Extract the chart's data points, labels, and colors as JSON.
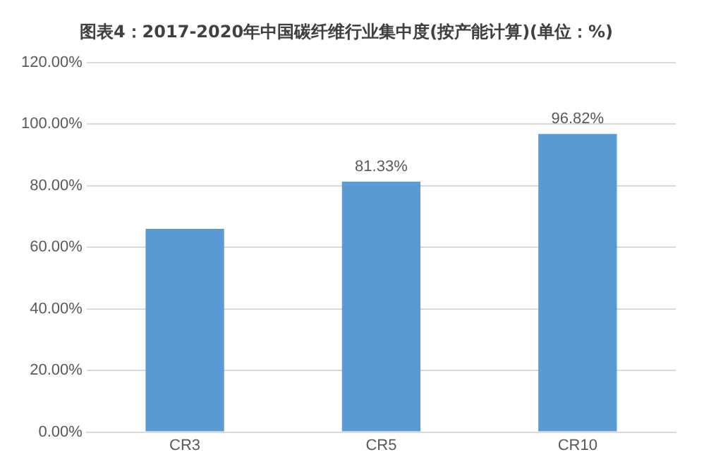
{
  "chart_data": {
    "type": "bar",
    "title": "图表4：2017-2020年中国碳纤维行业集中度(按产能计算)(单位：%)",
    "categories": [
      "CR3",
      "CR5",
      "CR10"
    ],
    "values": [
      66,
      81.33,
      96.82
    ],
    "value_labels": [
      null,
      "81.33%",
      "96.82%"
    ],
    "color": "#5b9bd5",
    "ylim": [
      0,
      120
    ],
    "yticks": [
      {
        "value": 0,
        "label": "0.00%"
      },
      {
        "value": 20,
        "label": "20.00%"
      },
      {
        "value": 40,
        "label": "40.00%"
      },
      {
        "value": 60,
        "label": "60.00%"
      },
      {
        "value": 80,
        "label": "80.00%"
      },
      {
        "value": 100,
        "label": "100.00%"
      },
      {
        "value": 120,
        "label": "120.00%"
      }
    ],
    "grid": "y",
    "legend": false
  }
}
